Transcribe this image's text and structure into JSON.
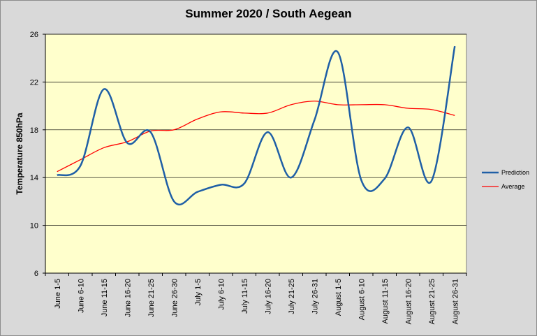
{
  "chart_data": {
    "type": "line",
    "title": "Summer 2020 / South Aegean",
    "xlabel": "",
    "ylabel": "Temperature 850hPa",
    "ylim": [
      6,
      26
    ],
    "yticks": [
      6,
      10,
      14,
      18,
      22,
      26
    ],
    "grid": true,
    "legend_position": "right",
    "categories": [
      "June 1-5",
      "June 6-10",
      "June 11-15",
      "June 16-20",
      "June 21-25",
      "June 26-30",
      "July 1-5",
      "July 6-10",
      "July 11-15",
      "July 16-20",
      "July 21-25",
      "July 26-31",
      "August 1-5",
      "August 6-10",
      "August 11-15",
      "August 16-20",
      "August 21-25",
      "August 26-31"
    ],
    "series": [
      {
        "name": "Prediction",
        "color": "#1f5fa6",
        "values": [
          14.2,
          15.0,
          21.4,
          16.9,
          17.8,
          12.0,
          12.8,
          13.4,
          13.5,
          17.8,
          14.0,
          18.8,
          24.5,
          13.8,
          13.9,
          18.2,
          13.7,
          25.0
        ]
      },
      {
        "name": "Average",
        "color": "#ff0000",
        "values": [
          14.5,
          15.5,
          16.5,
          17.0,
          17.9,
          18.0,
          18.9,
          19.5,
          19.4,
          19.4,
          20.1,
          20.4,
          20.1,
          20.1,
          20.1,
          19.8,
          19.7,
          19.2
        ]
      }
    ]
  },
  "colors": {
    "plot_background": "#ffffcc",
    "outer_background": "#d9d9d9",
    "gridline": "#000000"
  }
}
